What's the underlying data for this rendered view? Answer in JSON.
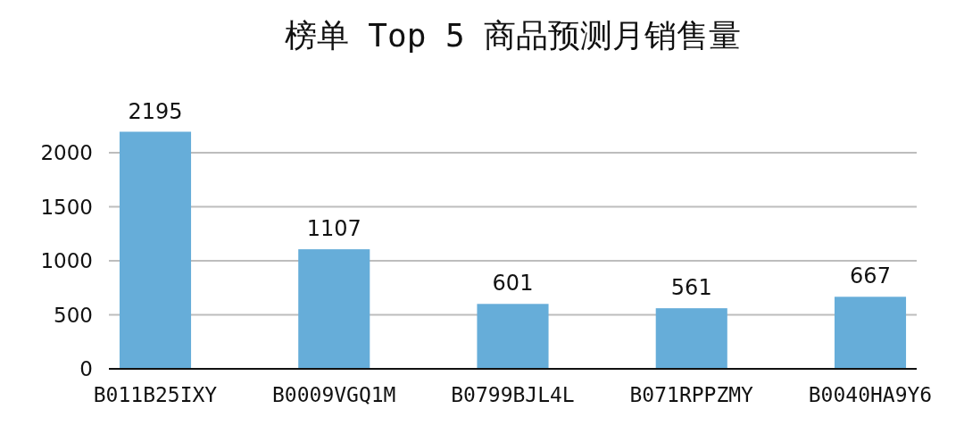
{
  "chart_data": {
    "type": "bar",
    "title": "榜单 Top 5 商品预测月销售量",
    "categories": [
      "B011B25IXY",
      "B0009VGQ1M",
      "B0799BJL4L",
      "B071RPPZMY",
      "B0040HA9Y6"
    ],
    "values": [
      2195,
      1107,
      601,
      561,
      667
    ],
    "color": "#66add9",
    "ylim": [
      0,
      2195
    ],
    "yticks": [
      0,
      500,
      1000,
      1500,
      2000
    ],
    "grid": "y",
    "data_labels": true
  }
}
